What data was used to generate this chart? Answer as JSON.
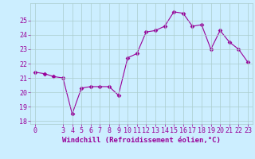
{
  "x": [
    0,
    1,
    2,
    3,
    4,
    5,
    6,
    7,
    8,
    9,
    10,
    11,
    12,
    13,
    14,
    15,
    16,
    17,
    18,
    19,
    20,
    21,
    22,
    23
  ],
  "y": [
    21.4,
    21.3,
    21.1,
    21.0,
    18.5,
    20.3,
    20.4,
    20.4,
    20.4,
    19.8,
    22.4,
    22.7,
    24.2,
    24.3,
    24.6,
    25.6,
    25.5,
    24.6,
    24.7,
    23.0,
    24.3,
    23.5,
    23.0,
    22.1
  ],
  "line_color": "#990099",
  "marker": "D",
  "marker_size": 2.5,
  "background_color": "#cceeff",
  "grid_color": "#aacccc",
  "xlabel": "Windchill (Refroidissement éolien,°C)",
  "xlabel_color": "#990099",
  "tick_color": "#990099",
  "ylim": [
    17.8,
    26.2
  ],
  "xlim": [
    -0.5,
    23.5
  ],
  "yticks": [
    18,
    19,
    20,
    21,
    22,
    23,
    24,
    25
  ],
  "xticks": [
    0,
    3,
    4,
    5,
    6,
    7,
    8,
    9,
    10,
    11,
    12,
    13,
    14,
    15,
    16,
    17,
    18,
    19,
    20,
    21,
    22,
    23
  ],
  "xtick_labels": [
    "0",
    "3",
    "4",
    "5",
    "6",
    "7",
    "8",
    "9",
    "10",
    "11",
    "12",
    "13",
    "14",
    "15",
    "16",
    "17",
    "18",
    "19",
    "20",
    "21",
    "22",
    "23"
  ],
  "label_fontsize": 6.5,
  "tick_fontsize": 6.0
}
